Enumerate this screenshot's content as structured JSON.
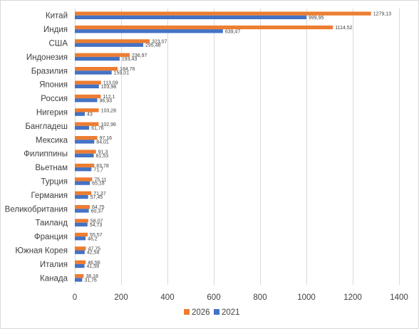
{
  "chart_data": {
    "type": "bar",
    "orientation": "horizontal",
    "title": "",
    "xlabel": "",
    "ylabel": "",
    "xlim": [
      0,
      1400
    ],
    "xticks": [
      0,
      200,
      400,
      600,
      800,
      1000,
      1200,
      1400
    ],
    "grid": true,
    "legend_position": "bottom",
    "categories": [
      "Китай",
      "Индия",
      "США",
      "Индонезия",
      "Бразилия",
      "Япония",
      "Россия",
      "Нигерия",
      "Бангладеш",
      "Мексика",
      "Филиппины",
      "Вьетнам",
      "Турция",
      "Германия",
      "Великобритания",
      "Таиланд",
      "Франция",
      "Южная Корея",
      "Италия",
      "Канада"
    ],
    "series": [
      {
        "name": "2026",
        "color": "#ed7d31",
        "values": [
          1279.13,
          1114.52,
          323.07,
          236.97,
          184.76,
          113.09,
          112.1,
          103.28,
          102.96,
          97.16,
          91.3,
          83.78,
          75.11,
          71.37,
          64.75,
          58.07,
          55.57,
          47.75,
          46.56,
          38.18
        ],
        "labels": [
          "1279,13",
          "1114,52",
          "323,07",
          "236,97",
          "184,76",
          "113,09",
          "112,1",
          "103,28",
          "102,96",
          "97,16",
          "91,3",
          "83,78",
          "75,11",
          "71,37",
          "64,75",
          "58,07",
          "55,57",
          "47,75",
          "46,56",
          "38,18"
        ]
      },
      {
        "name": "2021",
        "color": "#4472c4",
        "values": [
          999.95,
          639.47,
          295.48,
          193.43,
          159.01,
          103.98,
          96.93,
          43,
          61.76,
          84.01,
          81.53,
          71.7,
          65.18,
          57.45,
          60.37,
          54.73,
          46.2,
          42.58,
          41.59,
          31.76
        ],
        "labels": [
          "999,95",
          "639,47",
          "295,48",
          "193,43",
          "159,01",
          "103,98",
          "96,93",
          "43",
          "61,76",
          "84,01",
          "81,53",
          "71,7",
          "65,18",
          "57,45",
          "60,37",
          "54,73",
          "46,2",
          "42,58",
          "41,59",
          "31,76"
        ]
      }
    ]
  }
}
